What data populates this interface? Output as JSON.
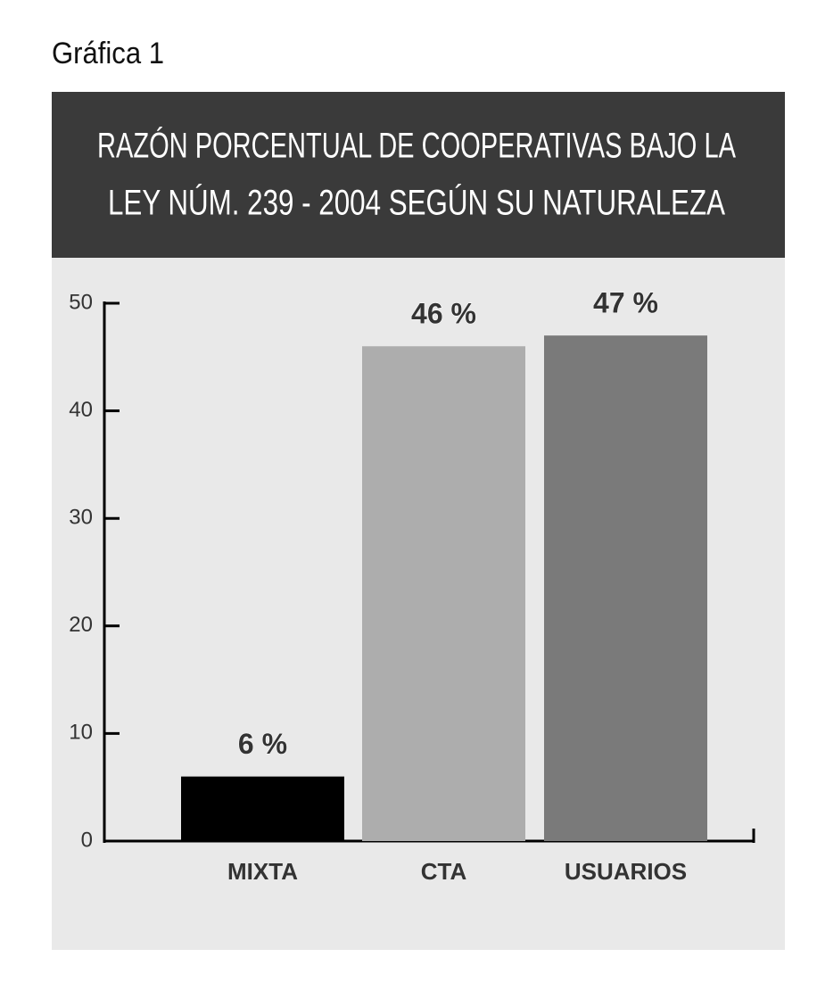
{
  "label": "Gráfica 1",
  "chart_data": {
    "type": "bar",
    "title": [
      "RAZÓN PORCENTUAL DE COOPERATIVAS BAJO LA",
      "LEY NÚM. 239 - 2004 SEGÚN SU NATURALEZA"
    ],
    "categories": [
      "MIXTA",
      "CTA",
      "USUARIOS"
    ],
    "values": [
      6,
      46,
      47
    ],
    "value_labels": [
      "6 %",
      "46 %",
      "47 %"
    ],
    "colors": [
      "#000000",
      "#adadad",
      "#7a7a7a"
    ],
    "ylim": [
      0,
      50
    ],
    "yticks": [
      0,
      10,
      20,
      30,
      40,
      50
    ]
  }
}
